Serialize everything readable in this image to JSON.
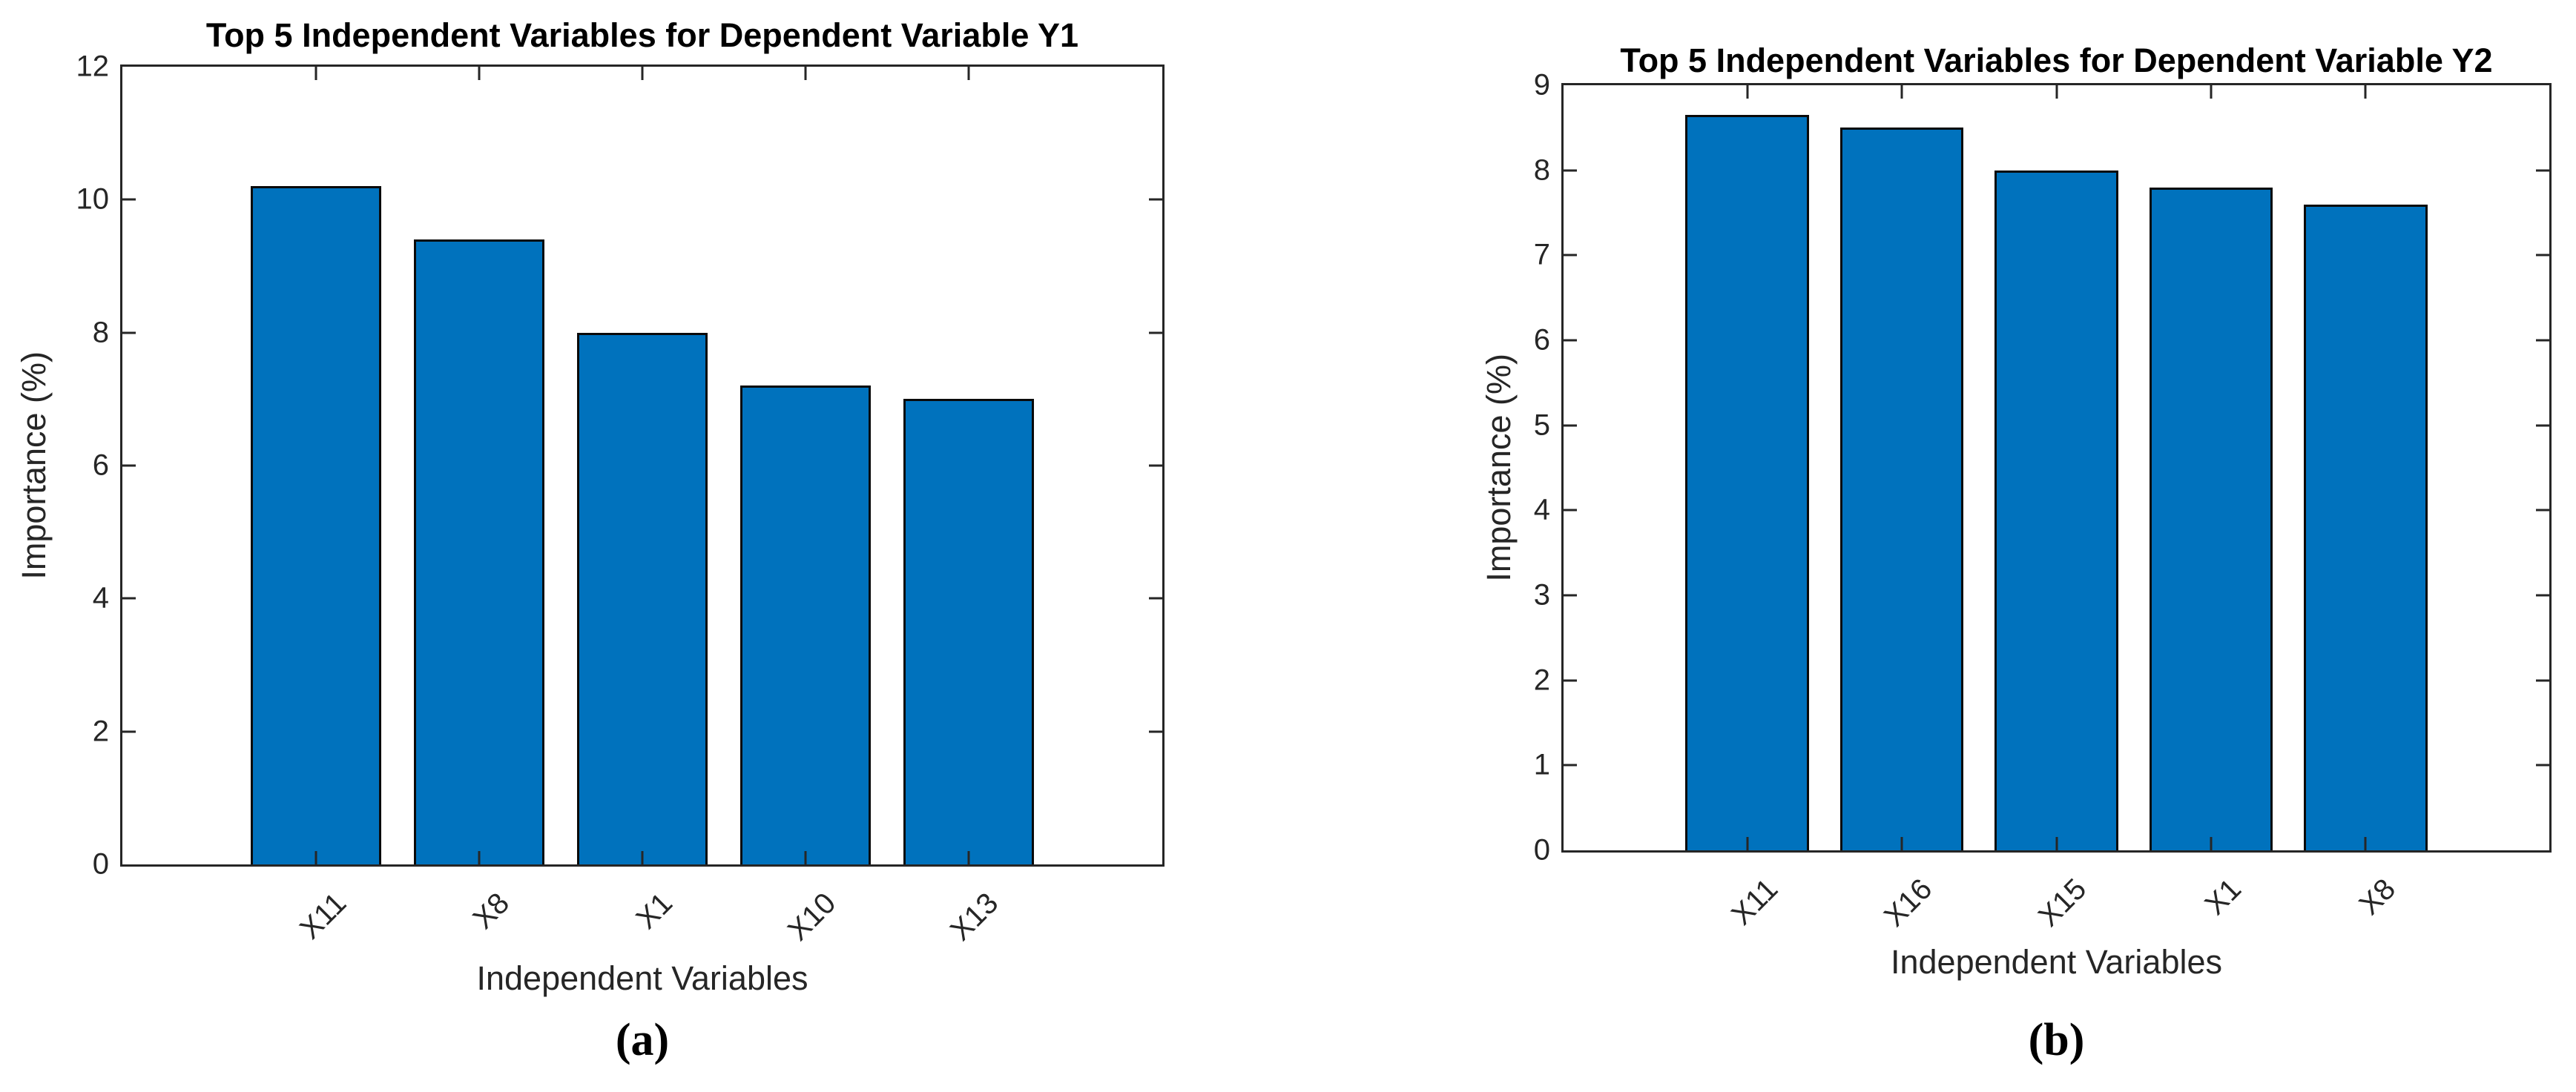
{
  "page": {
    "background": "#ffffff"
  },
  "chart_data": [
    {
      "type": "bar",
      "panel": "a",
      "title": "Top 5 Independent Variables for Dependent Variable Y1",
      "caption": "(a)",
      "xlabel": "Independent Variables",
      "ylabel": "Importance (%)",
      "categories": [
        "X11",
        "X8",
        "X1",
        "X10",
        "X13"
      ],
      "values": [
        10.2,
        9.4,
        8.0,
        7.2,
        7.0
      ],
      "ylim": [
        0,
        12
      ],
      "ytick_step": 2,
      "ytick_labels": [
        "0",
        "2",
        "4",
        "6",
        "8",
        "10",
        "12"
      ],
      "bar_color": "#0072BD",
      "bar_edge_color": "#0a0a0a",
      "axis_color": "#262626",
      "grid": false,
      "legend_position": "none"
    },
    {
      "type": "bar",
      "panel": "b",
      "title": "Top 5 Independent Variables for Dependent Variable Y2",
      "caption": "(b)",
      "xlabel": "Independent Variables",
      "ylabel": "Importance (%)",
      "categories": [
        "X11",
        "X16",
        "X15",
        "X1",
        "X8"
      ],
      "values": [
        8.65,
        8.5,
        8.0,
        7.8,
        7.6
      ],
      "ylim": [
        0,
        9
      ],
      "ytick_step": 1,
      "ytick_labels": [
        "0",
        "1",
        "2",
        "3",
        "4",
        "5",
        "6",
        "7",
        "8",
        "9"
      ],
      "bar_color": "#0072BD",
      "bar_edge_color": "#0a0a0a",
      "axis_color": "#262626",
      "grid": false,
      "legend_position": "none"
    }
  ]
}
